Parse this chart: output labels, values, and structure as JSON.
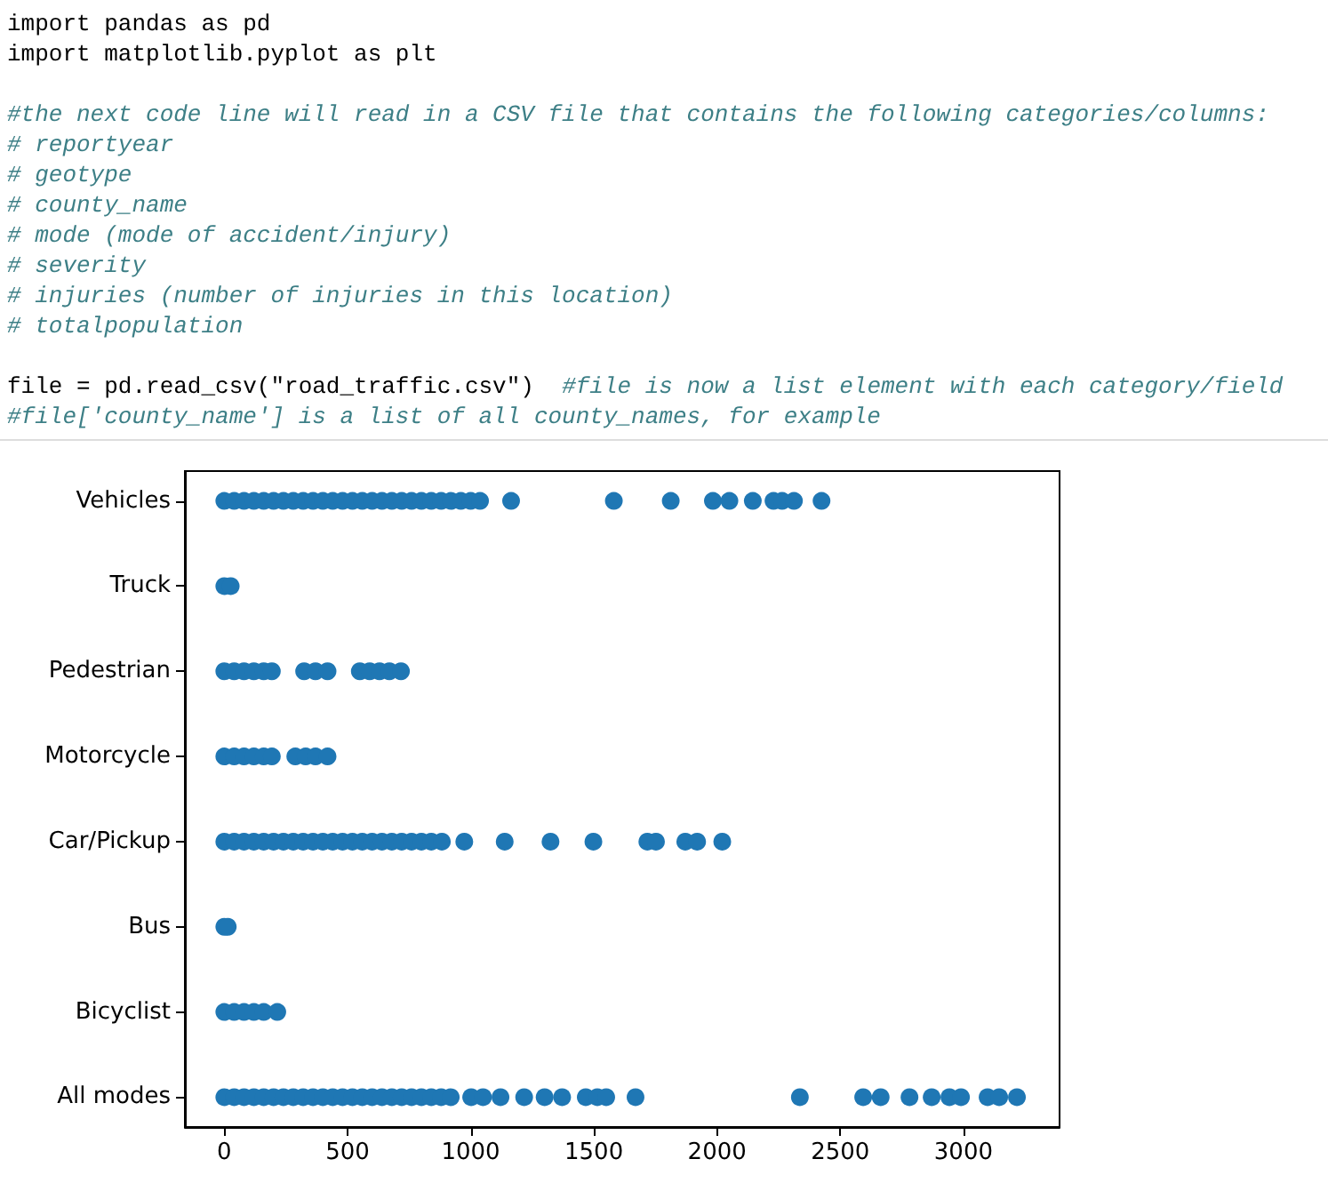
{
  "chart_data": {
    "type": "scatter",
    "orientation": "horizontal",
    "annotations": [
      "import pandas as pd\nimport matplotlib.pyplot as plt\n\n#the next code line will read in a CSV file that contains the following categories/columns:\n# reportyear\n# geotype\n# county_name\n# mode (mode of accident/injury)\n# severity\n# injuries (number of injuries in this location)\n# totalpopulation\n\nfile = pd.read_csv(\"road_traffic.csv\")  #file is now a list element with each category/field\n#file['county_name'] is a list of all county_names, for example"
    ],
    "categories": [
      "Vehicles",
      "Truck",
      "Pedestrian",
      "Motorcycle",
      "Car/Pickup",
      "Bus",
      "Bicyclist",
      "All modes"
    ],
    "xlim": [
      -160,
      3390
    ],
    "xticks": [
      0,
      500,
      1000,
      1500,
      2000,
      2500,
      3000
    ],
    "grid": false,
    "marker": "circle",
    "series": [
      {
        "color": "#1f77b4",
        "x": [
          "Vehicles",
          "Vehicles",
          "Vehicles",
          "Vehicles",
          "Vehicles",
          "Vehicles",
          "Vehicles",
          "Vehicles",
          "Vehicles",
          "Vehicles",
          "Vehicles",
          "Vehicles",
          "Vehicles",
          "Vehicles",
          "Vehicles",
          "Vehicles",
          "Vehicles",
          "Vehicles",
          "Vehicles",
          "Vehicles",
          "Vehicles",
          "Vehicles",
          "Vehicles",
          "Vehicles",
          "Vehicles",
          "Vehicles",
          "Vehicles",
          "Vehicles",
          "Vehicles",
          "Vehicles",
          "Vehicles",
          "Vehicles",
          "Vehicles",
          "Vehicles",
          "Vehicles",
          "Vehicles",
          "Vehicles"
        ],
        "values": [
          0,
          40,
          80,
          120,
          160,
          200,
          240,
          280,
          320,
          360,
          400,
          440,
          480,
          520,
          560,
          600,
          640,
          680,
          720,
          760,
          800,
          840,
          880,
          920,
          960,
          1000,
          1038,
          1164,
          1581,
          1812,
          1983,
          2050,
          2145,
          2229,
          2264,
          2312,
          2424
        ]
      },
      {
        "color": "#1f77b4",
        "x": [
          "Truck",
          "Truck"
        ],
        "values": [
          0,
          26
        ]
      },
      {
        "color": "#1f77b4",
        "x": [
          "Pedestrian",
          "Pedestrian",
          "Pedestrian",
          "Pedestrian",
          "Pedestrian",
          "Pedestrian",
          "Pedestrian",
          "Pedestrian",
          "Pedestrian",
          "Pedestrian",
          "Pedestrian",
          "Pedestrian",
          "Pedestrian",
          "Pedestrian"
        ],
        "values": [
          0,
          40,
          80,
          120,
          160,
          193,
          324,
          370,
          419,
          550,
          590,
          630,
          670,
          717
        ]
      },
      {
        "color": "#1f77b4",
        "x": [
          "Motorcycle",
          "Motorcycle",
          "Motorcycle",
          "Motorcycle",
          "Motorcycle",
          "Motorcycle",
          "Motorcycle",
          "Motorcycle",
          "Motorcycle",
          "Motorcycle"
        ],
        "values": [
          0,
          40,
          80,
          120,
          160,
          193,
          288,
          330,
          370,
          419
        ]
      },
      {
        "color": "#1f77b4",
        "x": [
          "Car/Pickup",
          "Car/Pickup",
          "Car/Pickup",
          "Car/Pickup",
          "Car/Pickup",
          "Car/Pickup",
          "Car/Pickup",
          "Car/Pickup",
          "Car/Pickup",
          "Car/Pickup",
          "Car/Pickup",
          "Car/Pickup",
          "Car/Pickup",
          "Car/Pickup",
          "Car/Pickup",
          "Car/Pickup",
          "Car/Pickup",
          "Car/Pickup",
          "Car/Pickup",
          "Car/Pickup",
          "Car/Pickup",
          "Car/Pickup",
          "Car/Pickup",
          "Car/Pickup",
          "Car/Pickup",
          "Car/Pickup",
          "Car/Pickup",
          "Car/Pickup",
          "Car/Pickup",
          "Car/Pickup",
          "Car/Pickup",
          "Car/Pickup"
        ],
        "values": [
          0,
          40,
          80,
          120,
          160,
          200,
          240,
          280,
          320,
          360,
          400,
          440,
          480,
          520,
          560,
          600,
          640,
          680,
          720,
          760,
          800,
          840,
          883,
          974,
          1138,
          1324,
          1498,
          1717,
          1752,
          1871,
          1919,
          2021
        ]
      },
      {
        "color": "#1f77b4",
        "x": [
          "Bus",
          "Bus"
        ],
        "values": [
          0,
          14
        ]
      },
      {
        "color": "#1f77b4",
        "x": [
          "Bicyclist",
          "Bicyclist",
          "Bicyclist",
          "Bicyclist",
          "Bicyclist",
          "Bicyclist"
        ],
        "values": [
          0,
          40,
          80,
          120,
          160,
          215
        ]
      },
      {
        "color": "#1f77b4",
        "x": [
          "All modes",
          "All modes",
          "All modes",
          "All modes",
          "All modes",
          "All modes",
          "All modes",
          "All modes",
          "All modes",
          "All modes",
          "All modes",
          "All modes",
          "All modes",
          "All modes",
          "All modes",
          "All modes",
          "All modes",
          "All modes",
          "All modes",
          "All modes",
          "All modes",
          "All modes",
          "All modes",
          "All modes",
          "All modes",
          "All modes",
          "All modes",
          "All modes",
          "All modes",
          "All modes",
          "All modes",
          "All modes",
          "All modes",
          "All modes",
          "All modes",
          "All modes",
          "All modes",
          "All modes",
          "All modes",
          "All modes",
          "All modes",
          "All modes",
          "All modes",
          "All modes"
        ],
        "values": [
          0,
          40,
          80,
          120,
          160,
          200,
          240,
          280,
          320,
          360,
          400,
          440,
          480,
          520,
          560,
          600,
          640,
          680,
          720,
          760,
          800,
          840,
          880,
          919,
          1002,
          1050,
          1121,
          1217,
          1300,
          1371,
          1467,
          1514,
          1550,
          1669,
          2336,
          2593,
          2664,
          2781,
          2871,
          2943,
          2990,
          3098,
          3145,
          3217
        ]
      }
    ]
  }
}
